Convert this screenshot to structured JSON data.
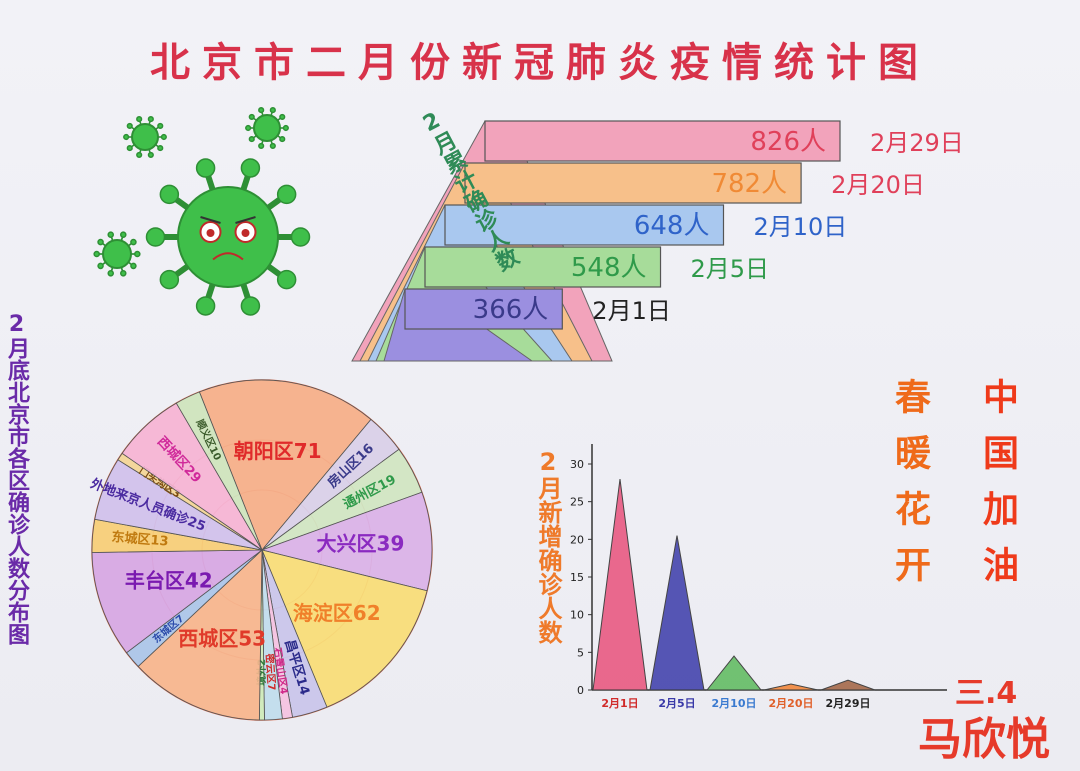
{
  "title": "北京市二月份新冠肺炎疫情统计图",
  "colors": {
    "title": "#d8324a",
    "virus": "#3fbf4a",
    "virus_dark": "#2e8f35"
  },
  "chart_data": [
    {
      "type": "bar",
      "orientation": "horizontal-funnel",
      "ylabel": "2月累计确诊人数",
      "categories": [
        "2月29日",
        "2月20日",
        "2月10日",
        "2月5日",
        "2月1日"
      ],
      "values": [
        826,
        782,
        648,
        548,
        366
      ],
      "data_labels": [
        "826人",
        "782人",
        "648人",
        "548人",
        "366人"
      ],
      "colors": [
        "#f2a3bb",
        "#f7c08a",
        "#a9c8ef",
        "#a7dc9a",
        "#9b8fe0"
      ],
      "label_colors": [
        "#e0405a",
        "#f08a35",
        "#2f63c9",
        "#2f9a4a",
        "#3a3a8a"
      ],
      "date_colors": [
        "#e0405a",
        "#e0405a",
        "#2f63c9",
        "#2f9a4a",
        "#222222"
      ]
    },
    {
      "type": "pie",
      "title": "2月底北京市各区确诊人数分布图",
      "slices": [
        {
          "label": "朝阳区71",
          "value": 71,
          "color": "#f6b08c",
          "text": "#e02a2a"
        },
        {
          "label": "房山区16",
          "value": 16,
          "color": "#d8d3f0",
          "text": "#3a3a8a"
        },
        {
          "label": "通州区19",
          "value": 19,
          "color": "#cfe9c8",
          "text": "#2f9a4a"
        },
        {
          "label": "大兴区39",
          "value": 39,
          "color": "#d9b4ee",
          "text": "#8a2ac0"
        },
        {
          "label": "海淀区62",
          "value": 62,
          "color": "#f8e07a",
          "text": "#f0802a"
        },
        {
          "label": "昌平区14",
          "value": 14,
          "color": "#c8c8f2",
          "text": "#2a2a8a"
        },
        {
          "label": "石景山区4",
          "value": 4,
          "color": "#f4c4e8",
          "text": "#d02a8a"
        },
        {
          "label": "密云区7",
          "value": 7,
          "color": "#bfe0f4",
          "text": "#d02a2a"
        },
        {
          "label": "境外2",
          "value": 2,
          "color": "#cdeebf",
          "text": "#2f7a3a"
        },
        {
          "label": "西城区53",
          "value": 53,
          "color": "#f7b790",
          "text": "#e03a2a"
        },
        {
          "label": "东城区7",
          "value": 7,
          "color": "#a8c8ef",
          "text": "#2a4aaa"
        },
        {
          "label": "丰台区42",
          "value": 42,
          "color": "#d6a9ea",
          "text": "#7a1ab0"
        },
        {
          "label": "东城区13",
          "value": 13,
          "color": "#f7d07a",
          "text": "#c07a10"
        },
        {
          "label": "外地来京人员确诊25",
          "value": 25,
          "color": "#cfc3f3",
          "text": "#4a2aa0"
        },
        {
          "label": "门头沟区3",
          "value": 3,
          "color": "#f4d89a",
          "text": "#7a4a10"
        },
        {
          "label": "西城区29",
          "value": 29,
          "color": "#f6b6da",
          "text": "#d02a9a"
        },
        {
          "label": "顺义区10",
          "value": 10,
          "color": "#cde8c2",
          "text": "#3a5a2a"
        }
      ]
    },
    {
      "type": "bar",
      "style": "triangle",
      "ylabel": "2月新增确诊人数",
      "categories": [
        "2月1日",
        "2月5日",
        "2月10日",
        "2月20日",
        "2月29日"
      ],
      "values": [
        28,
        20.5,
        4.5,
        0.8,
        1.3
      ],
      "ylim": [
        0,
        30
      ],
      "yticks": [
        "0",
        "5",
        "10",
        "15",
        "20",
        "25",
        "30"
      ],
      "colors": [
        "#e8507a",
        "#3a3aa8",
        "#5ab85a",
        "#f08030",
        "#a06040"
      ],
      "tick_colors": [
        "#d02a2a",
        "#3a3aa8",
        "#3a7ad0",
        "#e0602a",
        "#222222"
      ]
    }
  ],
  "slogans": {
    "left": "春暖花开",
    "right": "中国加油"
  },
  "date_stamp": "三.4",
  "author": "马欣悦"
}
